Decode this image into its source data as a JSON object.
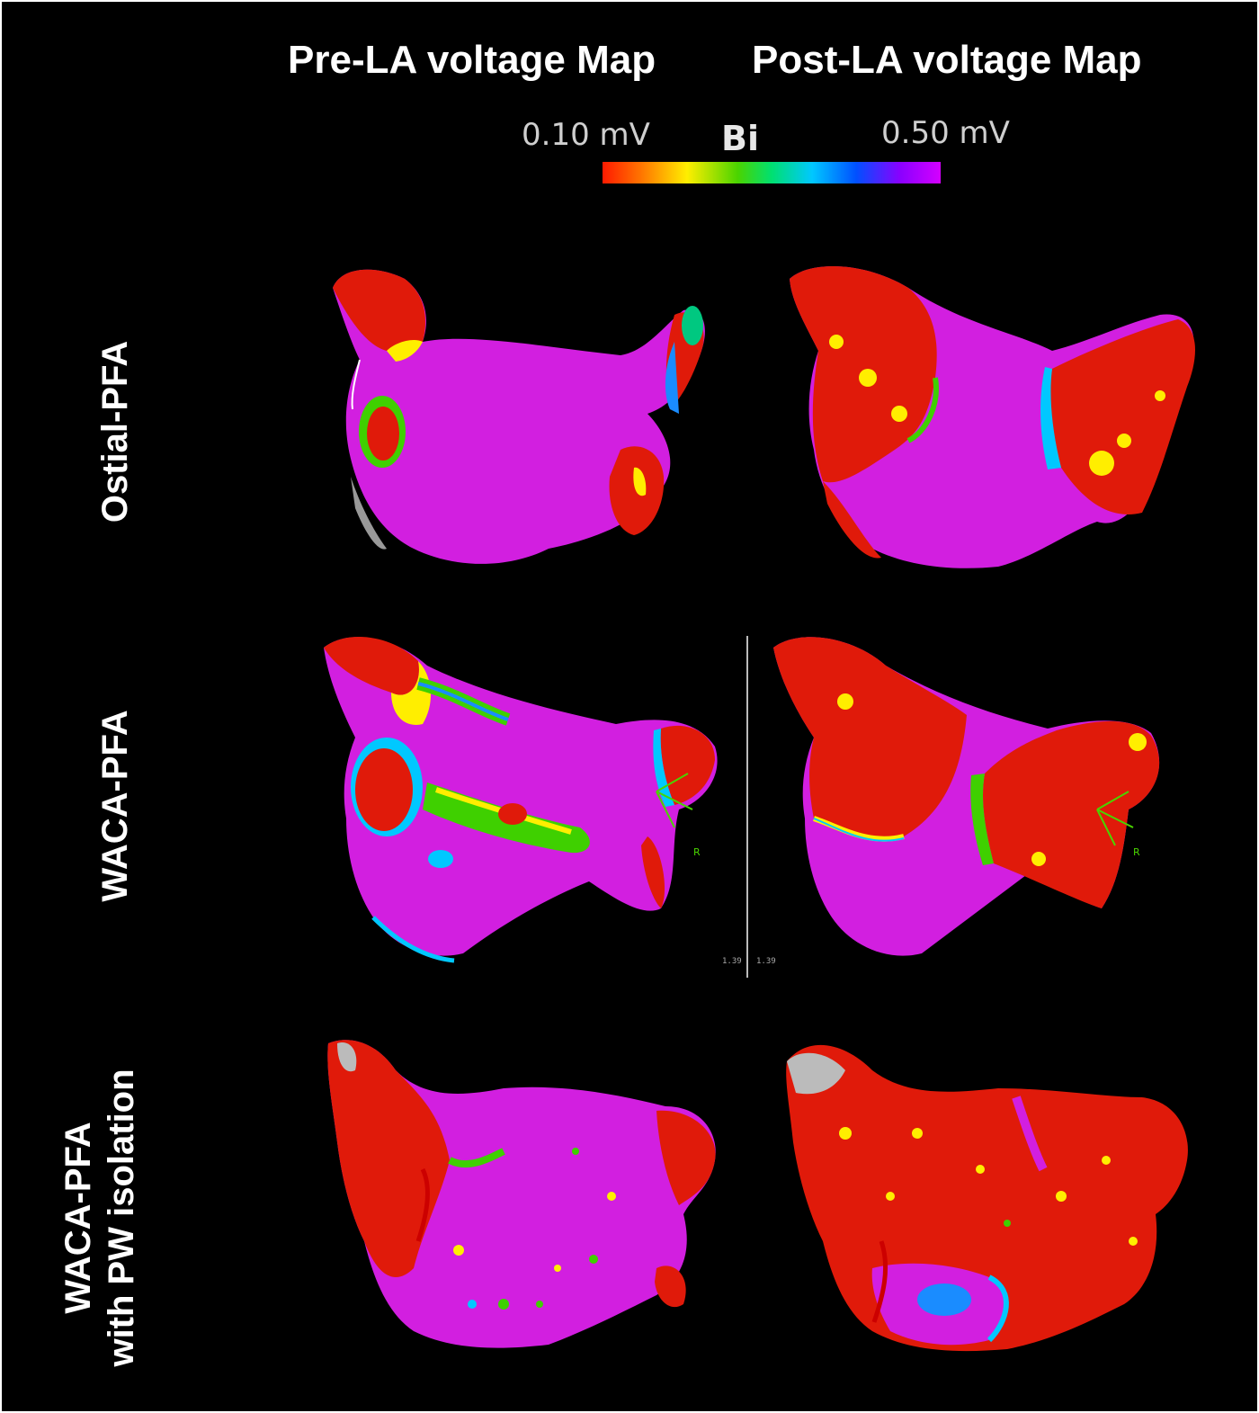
{
  "headers": {
    "pre": "Pre-LA voltage Map",
    "post": "Post-LA voltage Map"
  },
  "scale": {
    "min_label": "0.10 mV",
    "mode_label": "Bi",
    "max_label": "0.50 mV"
  },
  "rows": [
    {
      "label_line1": "Ostial-PFA",
      "label_line2": ""
    },
    {
      "label_line1": "WACA-PFA",
      "label_line2": ""
    },
    {
      "label_line1": "WACA-PFA",
      "label_line2": "with PW isolation"
    }
  ],
  "annotations": {
    "axis_letter": "R",
    "left_readout": "1.39",
    "right_readout": "1.39"
  },
  "colors": {
    "background": "#000000",
    "healthy": "#d21fe0",
    "scar": "#e01a0a",
    "border_zone": "#ffee00"
  }
}
